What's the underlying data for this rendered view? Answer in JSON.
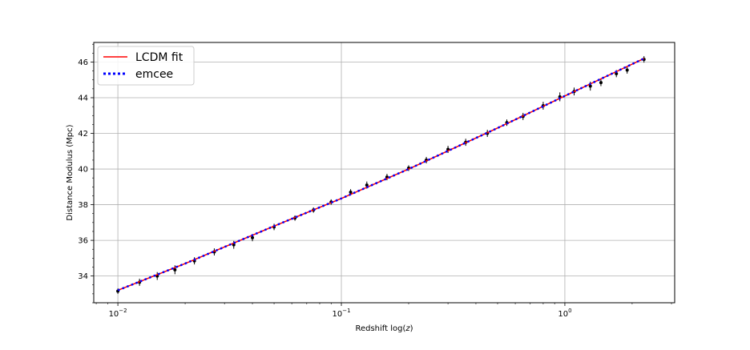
{
  "chart_data": {
    "type": "scatter",
    "title": "",
    "xlabel_prefix": "Redshift log(",
    "xlabel_var": "z",
    "xlabel_suffix": ")",
    "ylabel": "Distance Modulus (Mpc)",
    "xscale": "log",
    "xlim": [
      0.0078,
      3.1
    ],
    "ylim": [
      32.5,
      47.1
    ],
    "x_ticks": [
      {
        "value": 0.01,
        "base": "10",
        "exp": "−2"
      },
      {
        "value": 0.1,
        "base": "10",
        "exp": "−1"
      },
      {
        "value": 1,
        "base": "10",
        "exp": "0"
      }
    ],
    "y_ticks": [
      {
        "value": 34,
        "label": "34"
      },
      {
        "value": 36,
        "label": "36"
      },
      {
        "value": 38,
        "label": "38"
      },
      {
        "value": 40,
        "label": "40"
      },
      {
        "value": 42,
        "label": "42"
      },
      {
        "value": 44,
        "label": "44"
      },
      {
        "value": 46,
        "label": "46"
      }
    ],
    "grid": true,
    "legend_position": "upper-left",
    "series": [
      {
        "name": "LCDM fit",
        "kind": "line",
        "color": "#ff0000",
        "style": "solid",
        "x": [
          0.01,
          0.02,
          0.05,
          0.1,
          0.2,
          0.5,
          1.0,
          2.26
        ],
        "y": [
          33.2,
          34.7,
          36.8,
          38.35,
          40.0,
          42.3,
          44.1,
          46.2
        ]
      },
      {
        "name": "emcee",
        "kind": "line",
        "color": "#0000ff",
        "style": "dotted",
        "x": [
          0.01,
          0.02,
          0.05,
          0.1,
          0.2,
          0.5,
          1.0,
          2.26
        ],
        "y": [
          33.2,
          34.7,
          36.8,
          38.35,
          40.0,
          42.3,
          44.1,
          46.2
        ]
      },
      {
        "name": "",
        "kind": "errorbar-scatter",
        "color": "#000000",
        "x": [
          0.01,
          0.0125,
          0.015,
          0.018,
          0.022,
          0.027,
          0.033,
          0.04,
          0.05,
          0.062,
          0.075,
          0.09,
          0.11,
          0.13,
          0.16,
          0.2,
          0.24,
          0.3,
          0.36,
          0.45,
          0.55,
          0.65,
          0.8,
          0.95,
          1.1,
          1.3,
          1.45,
          1.7,
          1.9,
          2.26
        ],
        "y": [
          33.15,
          33.65,
          34.0,
          34.35,
          34.85,
          35.35,
          35.75,
          36.15,
          36.75,
          37.25,
          37.7,
          38.15,
          38.7,
          39.1,
          39.55,
          40.05,
          40.5,
          41.1,
          41.5,
          42.0,
          42.6,
          42.95,
          43.55,
          44.05,
          44.35,
          44.65,
          44.85,
          45.35,
          45.55,
          46.15
        ],
        "yerr": [
          0.15,
          0.2,
          0.22,
          0.25,
          0.2,
          0.2,
          0.22,
          0.2,
          0.18,
          0.15,
          0.15,
          0.15,
          0.17,
          0.2,
          0.18,
          0.16,
          0.18,
          0.2,
          0.2,
          0.2,
          0.18,
          0.2,
          0.22,
          0.25,
          0.22,
          0.25,
          0.2,
          0.2,
          0.2,
          0.18
        ]
      }
    ]
  }
}
